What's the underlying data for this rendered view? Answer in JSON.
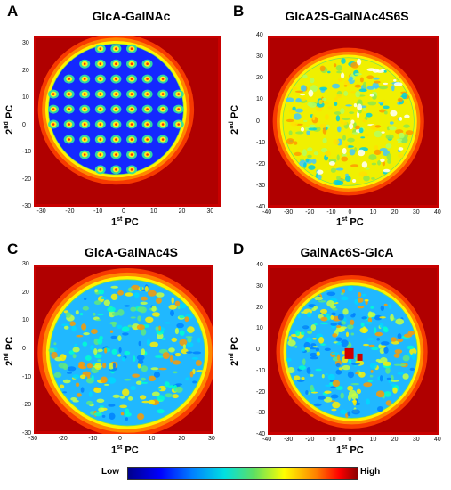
{
  "chart_data": [
    {
      "panel": "A",
      "type": "heatmap",
      "title": "GlcA-GalNAc",
      "xlabel": "1",
      "xlabel_sup": "st",
      "xlabel_suffix": " PC",
      "ylabel": "2",
      "ylabel_sup": "nd",
      "ylabel_suffix": " PC",
      "xlim": [
        -33,
        33
      ],
      "ylim": [
        -30,
        33
      ],
      "xticks": [
        "-30",
        "-20",
        "-10",
        "0",
        "10",
        "20",
        "30"
      ],
      "yticks": [
        "30",
        "20",
        "10",
        "0",
        "-10",
        "-20",
        "-30"
      ],
      "pattern": "grid"
    },
    {
      "panel": "B",
      "type": "heatmap",
      "title": "GlcA2S-GalNAc4S6S",
      "xlabel": "1",
      "xlabel_sup": "st",
      "xlabel_suffix": " PC",
      "ylabel": "2",
      "ylabel_sup": "nd",
      "ylabel_suffix": " PC",
      "xlim": [
        -40,
        40
      ],
      "ylim": [
        -40,
        40
      ],
      "xticks": [
        "-40",
        "-30",
        "-20",
        "-10",
        "0",
        "10",
        "20",
        "30",
        "40"
      ],
      "yticks": [
        "40",
        "30",
        "20",
        "10",
        "0",
        "-10",
        "-20",
        "-30",
        "-40"
      ],
      "pattern": "yellow"
    },
    {
      "panel": "C",
      "type": "heatmap",
      "title": "GlcA-GalNAc4S",
      "xlabel": "1",
      "xlabel_sup": "st",
      "xlabel_suffix": " PC",
      "ylabel": "2",
      "ylabel_sup": "nd",
      "ylabel_suffix": " PC",
      "xlim": [
        -30,
        30
      ],
      "ylim": [
        -30,
        30
      ],
      "xticks": [
        "-30",
        "-20",
        "-10",
        "0",
        "10",
        "20",
        "30"
      ],
      "yticks": [
        "30",
        "20",
        "10",
        "0",
        "-10",
        "-20",
        "-30"
      ],
      "pattern": "cyan"
    },
    {
      "panel": "D",
      "type": "heatmap",
      "title": "GalNAc6S-GlcA",
      "xlabel": "1",
      "xlabel_sup": "st",
      "xlabel_suffix": " PC",
      "ylabel": "2",
      "ylabel_sup": "nd",
      "ylabel_suffix": " PC",
      "xlim": [
        -40,
        40
      ],
      "ylim": [
        -40,
        40
      ],
      "xticks": [
        "-40",
        "-30",
        "-20",
        "-10",
        "0",
        "10",
        "20",
        "30",
        "40"
      ],
      "yticks": [
        "40",
        "30",
        "20",
        "10",
        "0",
        "-10",
        "-20",
        "-30",
        "-40"
      ],
      "pattern": "cyan"
    }
  ],
  "colorbar": {
    "low_label": "Low",
    "high_label": "High",
    "colors": [
      "#00008b",
      "#0000ff",
      "#0080ff",
      "#00e0e0",
      "#60e060",
      "#ffff00",
      "#ff8000",
      "#ff0000",
      "#8b0000"
    ]
  }
}
